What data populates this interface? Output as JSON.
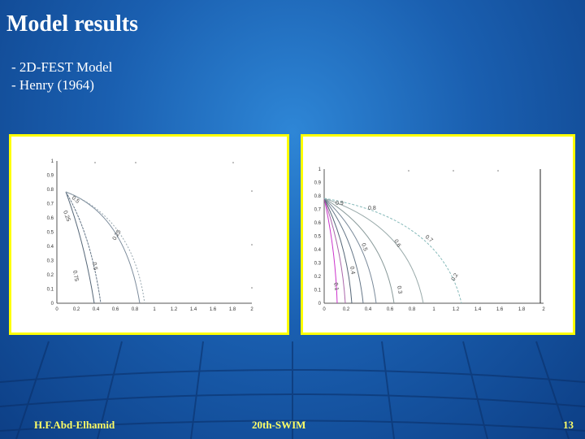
{
  "slide": {
    "title": "Model results",
    "bullets": [
      "- 2D-FEST Model",
      "- Henry (1964)"
    ],
    "footer_left": "H.F.Abd-Elhamid",
    "footer_center": "20th-SWIM",
    "page_number": "13",
    "colors": {
      "background": "#1a5fb0",
      "panel_border": "#ffff00",
      "footer_text": "#ffff66"
    }
  },
  "figures": [
    {
      "name": "left-plot",
      "y_ticks": [
        "0",
        "0.1",
        "0.2",
        "0.3",
        "0.4",
        "0.5",
        "0.6",
        "0.7",
        "0.8",
        "0.9",
        "1"
      ],
      "x_ticks": [
        "0",
        "0.2",
        "0.4",
        "0.6",
        "0.8",
        "1",
        "1.2",
        "1.4",
        "1.6",
        "1.8",
        "2"
      ],
      "contour_labels": [
        "0.5",
        "0.25",
        "0.75",
        "0.5",
        "0.25"
      ]
    },
    {
      "name": "right-plot",
      "y_ticks": [
        "0",
        "0.1",
        "0.2",
        "0.3",
        "0.4",
        "0.5",
        "0.6",
        "0.7",
        "0.8",
        "0.9",
        "1"
      ],
      "x_ticks": [
        "0",
        "0.2",
        "0.4",
        "0.6",
        "0.8",
        "1",
        "1.2",
        "1.4",
        "1.6",
        "1.8",
        "2"
      ],
      "contour_labels": [
        "0.9",
        "0.8",
        "0.7",
        "0.6",
        "0.5",
        "0.4",
        "0.3",
        "0.2",
        "0.1"
      ]
    }
  ]
}
